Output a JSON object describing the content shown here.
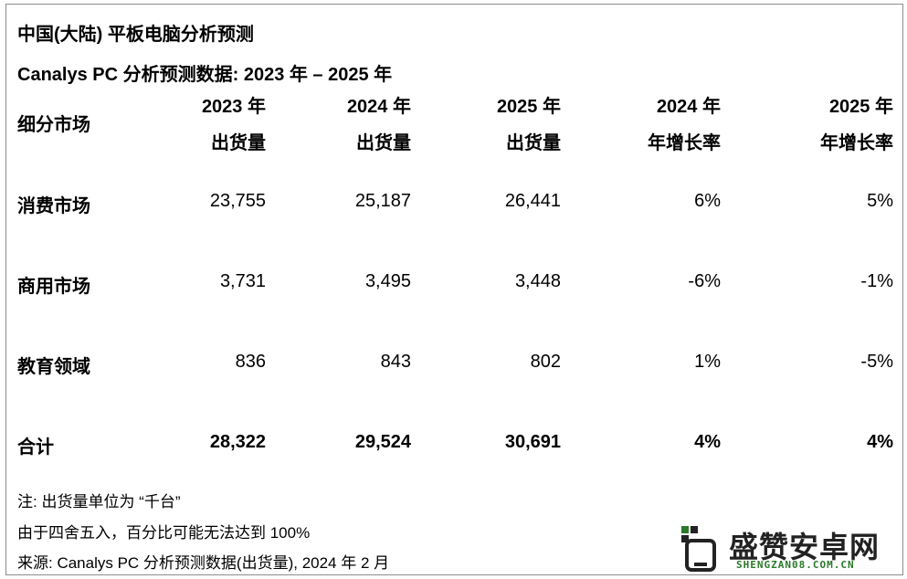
{
  "title": "中国(大陆) 平板电脑分析预测",
  "subtitle": "Canalys PC 分析预测数据: 2023 年 – 2025 年",
  "chart_data": {
    "type": "table",
    "header_segment": "细分市场",
    "columns": [
      {
        "line1": "2023 年",
        "line2": "出货量"
      },
      {
        "line1": "2024 年",
        "line2": "出货量"
      },
      {
        "line1": "2025 年",
        "line2": "出货量"
      },
      {
        "line1": "2024 年",
        "line2": "年增长率"
      },
      {
        "line1": "2025 年",
        "line2": "年增长率"
      }
    ],
    "rows": [
      {
        "label": "消费市场",
        "values": [
          "23,755",
          "25,187",
          "26,441",
          "6%",
          "5%"
        ]
      },
      {
        "label": "商用市场",
        "values": [
          "3,731",
          "3,495",
          "3,448",
          "-6%",
          "-1%"
        ]
      },
      {
        "label": "教育领域",
        "values": [
          "836",
          "843",
          "802",
          "1%",
          "-5%"
        ]
      },
      {
        "label": "合计",
        "values": [
          "28,322",
          "29,524",
          "30,691",
          "4%",
          "4%"
        ]
      }
    ]
  },
  "notes": [
    "注: 出货量单位为 “千台”",
    "由于四舍五入，百分比可能无法达到 100%",
    "来源: Canalys PC 分析预测数据(出货量), 2024 年 2 月"
  ],
  "watermark": {
    "text": "盛赞安卓网",
    "sub": "SHENGZAN08.COM.CN",
    "icon": "phone-icon",
    "accent": "#2a7a2a"
  }
}
